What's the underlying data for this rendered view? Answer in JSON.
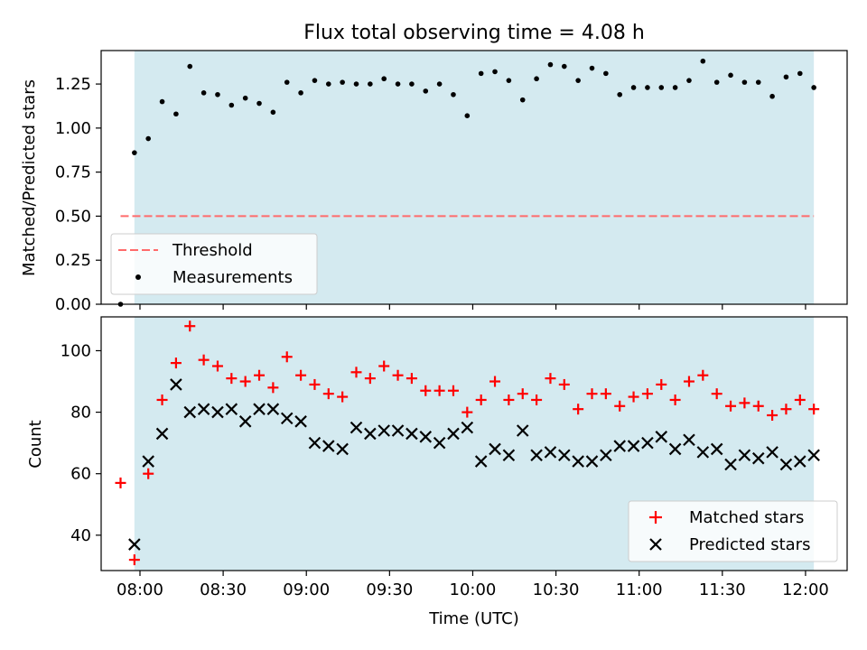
{
  "title": "Flux total observing time = 4.08 h",
  "colors": {
    "shade": "#d4eaf0",
    "threshold": "#ff6b6b",
    "matched": "#ff0000",
    "predicted": "#000000",
    "measurement": "#000000"
  },
  "chart_data": [
    {
      "type": "scatter",
      "panel": "top",
      "title": "Flux total observing time = 4.08 h",
      "xlabel": "",
      "ylabel": "Matched/Predicted stars",
      "xlim": [
        "07:46",
        "12:15"
      ],
      "ylim": [
        0,
        1.44
      ],
      "yticks": [
        0.0,
        0.25,
        0.5,
        0.75,
        1.0,
        1.25
      ],
      "ytick_labels": [
        "0.00",
        "0.25",
        "0.50",
        "0.75",
        "1.00",
        "1.25"
      ],
      "shaded_range": [
        "07:58",
        "12:03"
      ],
      "threshold": {
        "name": "Threshold",
        "value": 0.5,
        "x_range": [
          "07:53",
          "12:03"
        ]
      },
      "legend": [
        "Threshold",
        "Measurements"
      ],
      "legend_position": "lower-left",
      "x": [
        "07:53",
        "07:58",
        "08:03",
        "08:08",
        "08:13",
        "08:18",
        "08:23",
        "08:28",
        "08:33",
        "08:38",
        "08:43",
        "08:48",
        "08:53",
        "08:58",
        "09:03",
        "09:08",
        "09:13",
        "09:18",
        "09:23",
        "09:28",
        "09:33",
        "09:38",
        "09:43",
        "09:48",
        "09:53",
        "09:58",
        "10:03",
        "10:08",
        "10:13",
        "10:18",
        "10:23",
        "10:28",
        "10:33",
        "10:38",
        "10:43",
        "10:48",
        "10:53",
        "10:58",
        "11:03",
        "11:08",
        "11:13",
        "11:18",
        "11:23",
        "11:28",
        "11:33",
        "11:38",
        "11:43",
        "11:48",
        "11:53",
        "11:58",
        "12:03"
      ],
      "series": [
        {
          "name": "Measurements",
          "values": [
            0.0,
            0.86,
            0.94,
            1.15,
            1.08,
            1.35,
            1.2,
            1.19,
            1.13,
            1.17,
            1.14,
            1.09,
            1.26,
            1.2,
            1.27,
            1.25,
            1.26,
            1.25,
            1.25,
            1.28,
            1.25,
            1.25,
            1.21,
            1.25,
            1.19,
            1.07,
            1.31,
            1.32,
            1.27,
            1.16,
            1.28,
            1.36,
            1.35,
            1.27,
            1.34,
            1.31,
            1.19,
            1.23,
            1.23,
            1.23,
            1.23,
            1.27,
            1.38,
            1.26,
            1.3,
            1.26,
            1.26,
            1.18,
            1.29,
            1.31,
            1.23
          ]
        }
      ]
    },
    {
      "type": "scatter",
      "panel": "bottom",
      "xlabel": "Time (UTC)",
      "ylabel": "Count",
      "xlim": [
        "07:46",
        "12:15"
      ],
      "ylim": [
        28.5,
        111
      ],
      "xticks": [
        "08:00",
        "08:30",
        "09:00",
        "09:30",
        "10:00",
        "10:30",
        "11:00",
        "11:30",
        "12:00"
      ],
      "yticks": [
        40,
        60,
        80,
        100
      ],
      "shaded_range": [
        "07:58",
        "12:03"
      ],
      "legend": [
        "Matched stars",
        "Predicted stars"
      ],
      "legend_position": "lower-right",
      "x": [
        "07:53",
        "07:58",
        "08:03",
        "08:08",
        "08:13",
        "08:18",
        "08:23",
        "08:28",
        "08:33",
        "08:38",
        "08:43",
        "08:48",
        "08:53",
        "08:58",
        "09:03",
        "09:08",
        "09:13",
        "09:18",
        "09:23",
        "09:28",
        "09:33",
        "09:38",
        "09:43",
        "09:48",
        "09:53",
        "09:58",
        "10:03",
        "10:08",
        "10:13",
        "10:18",
        "10:23",
        "10:28",
        "10:33",
        "10:38",
        "10:43",
        "10:48",
        "10:53",
        "10:58",
        "11:03",
        "11:08",
        "11:13",
        "11:18",
        "11:23",
        "11:28",
        "11:33",
        "11:38",
        "11:43",
        "11:48",
        "11:53",
        "11:58",
        "12:03"
      ],
      "series": [
        {
          "name": "Matched stars",
          "marker": "plus",
          "values": [
            57,
            32,
            60,
            84,
            96,
            108,
            97,
            95,
            91,
            90,
            92,
            88,
            98,
            92,
            89,
            86,
            85,
            93,
            91,
            95,
            92,
            91,
            87,
            87,
            87,
            80,
            84,
            90,
            84,
            86,
            84,
            91,
            89,
            81,
            86,
            86,
            82,
            85,
            86,
            89,
            84,
            90,
            92,
            86,
            82,
            83,
            82,
            79,
            81,
            84,
            81
          ]
        },
        {
          "name": "Predicted stars",
          "marker": "x",
          "values": [
            null,
            37,
            64,
            73,
            89,
            80,
            81,
            80,
            81,
            77,
            81,
            81,
            78,
            77,
            70,
            69,
            68,
            75,
            73,
            74,
            74,
            73,
            72,
            70,
            73,
            75,
            64,
            68,
            66,
            74,
            66,
            67,
            66,
            64,
            64,
            66,
            69,
            69,
            70,
            72,
            68,
            71,
            67,
            68,
            63,
            66,
            65,
            67,
            63,
            64,
            66
          ]
        }
      ]
    }
  ]
}
